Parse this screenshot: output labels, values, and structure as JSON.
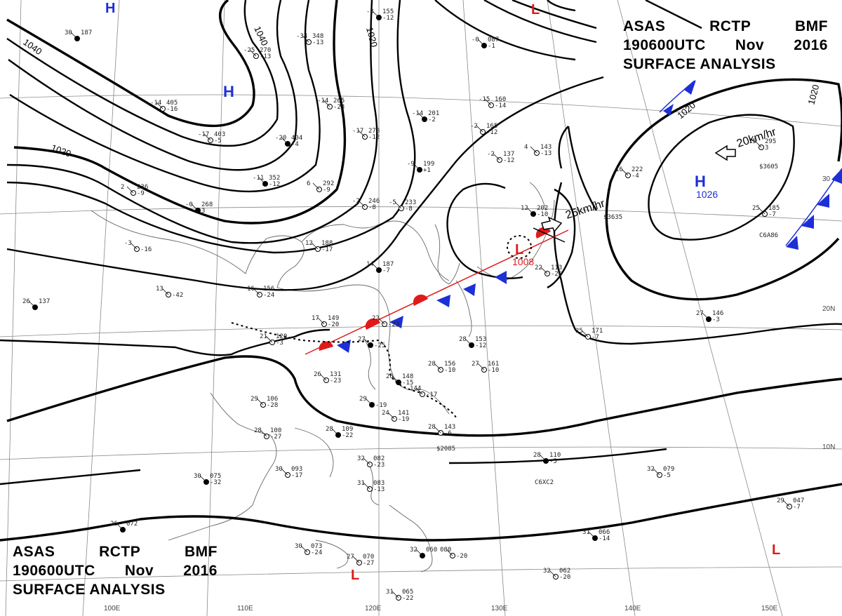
{
  "header": {
    "line1": [
      "ASAS",
      "RCTP",
      "BMF"
    ],
    "line2": [
      "190600UTC",
      "Nov",
      "2016"
    ],
    "line3": "SURFACE ANALYSIS"
  },
  "colors": {
    "high_symbol": "#1d2fd6",
    "low_symbol": "#e01a1a",
    "isobar": "#000000",
    "coast": "#666666",
    "grid": "#888888"
  },
  "isobar_labels": [
    "1040",
    "1040",
    "1020",
    "1020",
    "1020",
    "1020"
  ],
  "pressure_centers": [
    {
      "type": "H",
      "value": ""
    },
    {
      "type": "H",
      "value": ""
    },
    {
      "type": "H",
      "value": "1026"
    },
    {
      "type": "L",
      "value": "1008"
    },
    {
      "type": "L",
      "value": ""
    },
    {
      "type": "L",
      "value": ""
    },
    {
      "type": "L",
      "value": ""
    }
  ],
  "motion": [
    {
      "speed": "20km/hr"
    },
    {
      "speed": "25km/hr"
    }
  ],
  "lat_labels": [
    "20N",
    "10N",
    "30"
  ],
  "lon_labels": [
    "100E",
    "110E",
    "120E",
    "130E",
    "140E",
    "150E"
  ],
  "stations": [
    {
      "t": "30",
      "p": "187"
    },
    {
      "t": "-25",
      "p": "270",
      "d": "-13"
    },
    {
      "t": "-34",
      "p": "348",
      "d": "-13"
    },
    {
      "t": "-3",
      "p": "155",
      "d": "-12"
    },
    {
      "t": "-14",
      "p": "405",
      "d": "-16"
    },
    {
      "t": "-14",
      "p": "265",
      "d": "-23"
    },
    {
      "t": "-20",
      "p": "404",
      "d": "-4"
    },
    {
      "t": "-17",
      "p": "403",
      "d": "-5"
    },
    {
      "t": "-17",
      "p": "278",
      "d": "-12"
    },
    {
      "t": "-14",
      "p": "201",
      "d": "-2"
    },
    {
      "t": "-15",
      "p": "160",
      "d": "-14"
    },
    {
      "t": "-2",
      "p": "165",
      "d": "-12"
    },
    {
      "t": "-11",
      "p": "352",
      "d": "-12"
    },
    {
      "t": "6",
      "p": "292",
      "d": "-9"
    },
    {
      "t": "2",
      "p": "236",
      "d": "-9"
    },
    {
      "t": "-0",
      "p": "268",
      "d": "3"
    },
    {
      "t": "-2",
      "p": "246",
      "d": "-8"
    },
    {
      "t": "-5",
      "p": "233",
      "d": "-8"
    },
    {
      "t": "-9",
      "p": "199",
      "d": "+1"
    },
    {
      "t": "-2",
      "p": "137",
      "d": "-12"
    },
    {
      "t": "4",
      "p": "143",
      "d": "-13"
    },
    {
      "t": "-0",
      "p": "087",
      "d": "-1"
    },
    {
      "t": "16",
      "p": "222",
      "d": "-4"
    },
    {
      "t": "15",
      "p": "295",
      "d": "3"
    },
    {
      "t": "12",
      "p": "202",
      "d": "-10"
    },
    {
      "t": "-3",
      "p": "",
      "d": "-16"
    },
    {
      "t": "12",
      "p": "188",
      "d": "-17"
    },
    {
      "t": "14",
      "p": "187",
      "d": "-7"
    },
    {
      "t": "16",
      "p": "156",
      "d": "-24"
    },
    {
      "t": "13",
      "p": "",
      "d": "-42"
    },
    {
      "t": "26",
      "p": "137"
    },
    {
      "t": "17",
      "p": "149",
      "d": "-20"
    },
    {
      "t": "21",
      "p": "120",
      "d": "-3"
    },
    {
      "t": "27",
      "p": "",
      "d": "-25"
    },
    {
      "t": "26",
      "p": "131",
      "d": "-23"
    },
    {
      "t": "22",
      "p": "",
      "d": "-23"
    },
    {
      "t": "28",
      "p": "153",
      "d": "-12"
    },
    {
      "t": "28",
      "p": "156",
      "d": "-10"
    },
    {
      "t": "27",
      "p": "161",
      "d": "-10"
    },
    {
      "t": "26",
      "p": "148",
      "d": "-15"
    },
    {
      "t": "144",
      "p": "",
      "d": "-17"
    },
    {
      "t": "29",
      "p": "106",
      "d": "-28"
    },
    {
      "t": "29",
      "p": "",
      "d": "-19"
    },
    {
      "t": "24",
      "p": "141",
      "d": "-19"
    },
    {
      "t": "28",
      "p": "143",
      "d": "-6"
    },
    {
      "t": "28",
      "p": "109",
      "d": "-22"
    },
    {
      "t": "28",
      "p": "100",
      "d": "-27"
    },
    {
      "t": "30",
      "p": "093",
      "d": "-17"
    },
    {
      "t": "30",
      "p": "075",
      "d": "-32"
    },
    {
      "t": "32",
      "p": "082",
      "d": "-23"
    },
    {
      "t": "31",
      "p": "083",
      "d": "-13"
    },
    {
      "t": "28",
      "p": "110",
      "d": "-5"
    },
    {
      "t": "32",
      "p": "079",
      "d": "-5"
    },
    {
      "t": "29",
      "p": "047",
      "d": "-7"
    },
    {
      "t": "26",
      "p": "072"
    },
    {
      "t": "30",
      "p": "073",
      "d": "-24"
    },
    {
      "t": "27",
      "p": "070",
      "d": "-27"
    },
    {
      "t": "31",
      "p": "066",
      "d": "-14"
    },
    {
      "t": "32",
      "p": "062",
      "d": "-20"
    },
    {
      "t": "31",
      "p": "065",
      "d": "-22"
    },
    {
      "t": "32",
      "p": "060"
    },
    {
      "t": "080",
      "p": "",
      "d": "-20"
    },
    {
      "t": "25",
      "p": "171",
      "d": "-7"
    },
    {
      "t": "27",
      "p": "146",
      "d": "-3"
    },
    {
      "t": "22",
      "p": "113",
      "d": "-26"
    },
    {
      "t": "25",
      "p": "185",
      "d": "-7"
    }
  ],
  "cloud_codes": [
    "C6A86",
    "C6XC2",
    "$3605",
    "$2085",
    "$3635"
  ]
}
